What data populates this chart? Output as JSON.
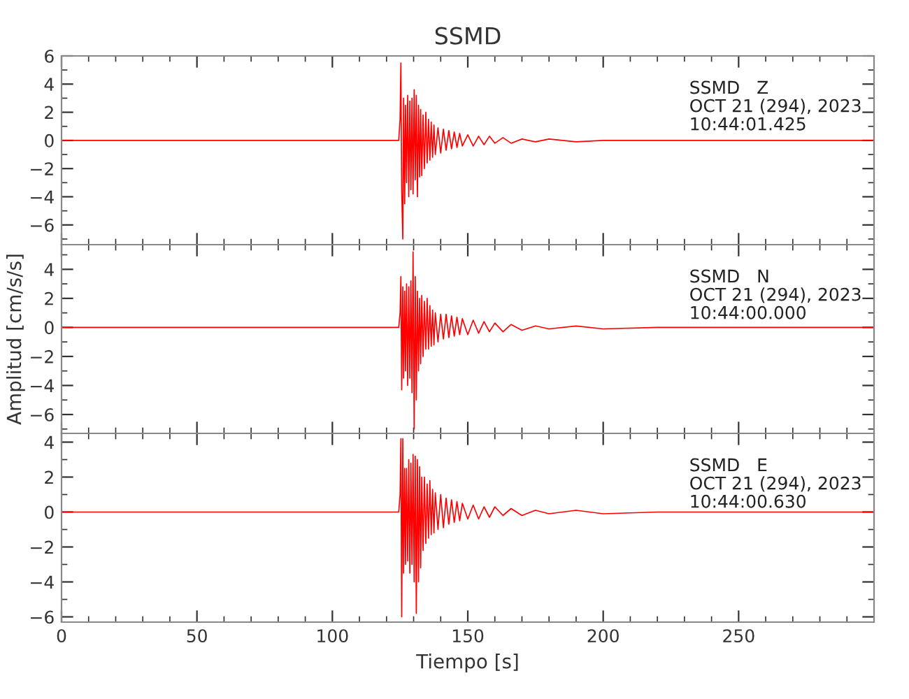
{
  "chart_data": [
    {
      "type": "line",
      "title": "SSMD",
      "annotations": [
        "SSMD   Z\nOCT 21 (294), 2023\n10:44:01.425"
      ],
      "tick_labels": "y",
      "grid": false,
      "xlim": [
        0,
        300
      ],
      "xticks": [
        0,
        50,
        100,
        150,
        200,
        250
      ],
      "ylim": [
        -7.4,
        6
      ],
      "yticks": [
        -6,
        -4,
        -2,
        0,
        2,
        4,
        6
      ],
      "x": [
        0,
        124.5,
        125,
        125.3,
        125.6,
        126,
        126.3,
        126.7,
        127,
        127.4,
        127.8,
        128.2,
        128.6,
        129,
        129.4,
        129.8,
        130.2,
        130.6,
        131,
        131.4,
        131.8,
        132.2,
        132.6,
        133,
        133.5,
        134,
        134.5,
        135,
        135.5,
        136,
        136.5,
        137,
        137.5,
        138,
        139,
        140,
        141,
        142,
        143,
        144,
        145,
        146,
        147,
        148,
        150,
        152,
        154,
        156,
        158,
        160,
        163,
        166,
        170,
        175,
        180,
        190,
        200,
        220,
        250,
        300
      ],
      "series": [
        {
          "color": "#ff0000",
          "values": [
            0,
            0,
            1.5,
            5.5,
            -3.5,
            -7.0,
            3.0,
            -4.5,
            2.5,
            -3.0,
            3.2,
            -4.0,
            2.8,
            -3.5,
            3.0,
            -3.8,
            3.6,
            -2.8,
            3.2,
            -4.0,
            2.5,
            -2.6,
            2.2,
            -2.5,
            1.8,
            -2.0,
            2.0,
            -1.6,
            1.5,
            -1.4,
            1.3,
            -1.2,
            1.1,
            -1.0,
            0.9,
            -0.9,
            0.8,
            -0.7,
            0.7,
            -0.6,
            0.6,
            -0.5,
            0.5,
            -0.4,
            0.4,
            -0.4,
            0.3,
            -0.3,
            0.3,
            -0.2,
            0.2,
            -0.2,
            0.1,
            -0.1,
            0.1,
            -0.1,
            0,
            0,
            0,
            0
          ]
        }
      ]
    },
    {
      "type": "line",
      "ylabel": "Amplitud [cm/s/s]",
      "annotations": [
        "SSMD   N\nOCT 21 (294), 2023\n10:44:00.000"
      ],
      "tick_labels": "y",
      "grid": false,
      "xlim": [
        0,
        300
      ],
      "xticks": [
        0,
        50,
        100,
        150,
        200,
        250
      ],
      "ylim": [
        -7.3,
        5.7
      ],
      "yticks": [
        -6,
        -4,
        -2,
        0,
        2,
        4
      ],
      "x": [
        0,
        124.5,
        125,
        125.3,
        125.6,
        126,
        126.3,
        126.7,
        127,
        127.4,
        127.8,
        128.2,
        128.6,
        129,
        129.4,
        129.8,
        130.2,
        130.6,
        131,
        131.4,
        131.8,
        132.2,
        132.6,
        133,
        133.5,
        134,
        134.5,
        135,
        135.5,
        136,
        136.5,
        137,
        137.5,
        138,
        139,
        140,
        141,
        142,
        143,
        144,
        145,
        146,
        147,
        148,
        150,
        152,
        154,
        156,
        158,
        160,
        163,
        166,
        170,
        175,
        180,
        190,
        200,
        220,
        250,
        300
      ],
      "series": [
        {
          "color": "#ff0000",
          "values": [
            0,
            0,
            1.0,
            3.5,
            -4.3,
            2.8,
            -3.5,
            2.5,
            -3.0,
            3.0,
            -4.0,
            2.8,
            -3.5,
            3.2,
            -4.5,
            5.2,
            -7.0,
            3.5,
            -5.0,
            2.5,
            -3.0,
            2.0,
            -2.5,
            2.2,
            -2.0,
            1.8,
            -1.5,
            2.0,
            -1.5,
            1.5,
            -1.3,
            1.2,
            -1.2,
            1.0,
            -1.0,
            0.9,
            -0.8,
            0.9,
            -0.7,
            0.8,
            -0.6,
            0.7,
            -0.5,
            0.6,
            -0.5,
            0.5,
            -0.4,
            0.4,
            -0.3,
            0.3,
            -0.3,
            0.2,
            -0.2,
            0.1,
            -0.1,
            0.1,
            -0.1,
            0,
            0,
            0
          ]
        }
      ]
    },
    {
      "type": "line",
      "xlabel": "Tiempo [s]",
      "annotations": [
        "SSMD   E\nOCT 21 (294), 2023\n10:44:00.630"
      ],
      "grid": false,
      "xlim": [
        0,
        300
      ],
      "xticks": [
        0,
        50,
        100,
        150,
        200,
        250
      ],
      "ylim": [
        -6.3,
        4.5
      ],
      "yticks": [
        -6,
        -4,
        -2,
        0,
        2,
        4
      ],
      "x": [
        0,
        124.5,
        125,
        125.3,
        125.6,
        126,
        126.3,
        126.7,
        127,
        127.4,
        127.8,
        128.2,
        128.6,
        129,
        129.4,
        129.8,
        130.2,
        130.6,
        131,
        131.4,
        131.8,
        132.2,
        132.6,
        133,
        133.5,
        134,
        134.5,
        135,
        135.5,
        136,
        136.5,
        137,
        137.5,
        138,
        139,
        140,
        141,
        142,
        143,
        144,
        145,
        146,
        147,
        148,
        150,
        152,
        154,
        156,
        158,
        160,
        163,
        166,
        170,
        175,
        180,
        190,
        200,
        220,
        250,
        300
      ],
      "series": [
        {
          "color": "#ff0000",
          "values": [
            0,
            0,
            1.0,
            4.2,
            -6.0,
            4.2,
            -3.5,
            2.5,
            -3.0,
            2.5,
            -2.8,
            3.0,
            -3.5,
            2.8,
            -3.0,
            3.3,
            -4.0,
            3.2,
            -5.8,
            3.0,
            -4.0,
            2.6,
            -3.2,
            2.0,
            -2.2,
            2.0,
            -1.8,
            1.6,
            -1.5,
            1.8,
            -1.3,
            1.3,
            -1.2,
            1.1,
            -1.0,
            1.0,
            -0.9,
            0.8,
            -0.7,
            0.7,
            -0.6,
            0.6,
            -0.5,
            0.5,
            -0.4,
            0.4,
            -0.4,
            0.3,
            -0.3,
            0.3,
            -0.2,
            0.2,
            -0.2,
            0.1,
            -0.1,
            0.1,
            -0.1,
            0,
            0,
            0
          ]
        }
      ]
    }
  ]
}
